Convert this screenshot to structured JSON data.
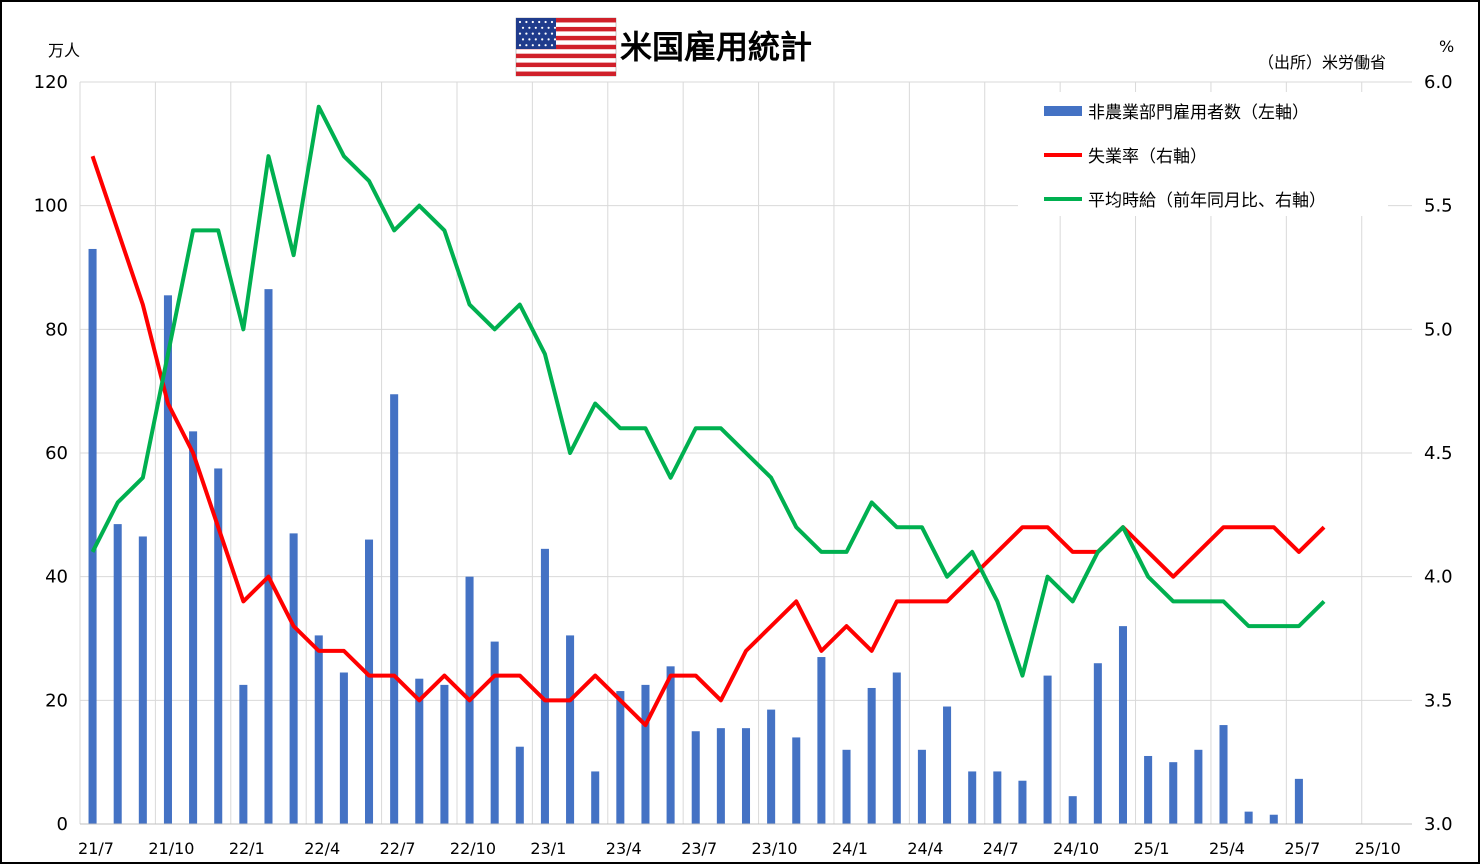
{
  "header": {
    "title": "米国雇用統計",
    "flag_icon": "us-flag-icon",
    "source": "（出所）米労働省",
    "left_unit": "万人",
    "right_unit": "%"
  },
  "chart_data": {
    "type": "bar+line",
    "title": "米国雇用統計",
    "x": [
      "21/7",
      "21/8",
      "21/9",
      "21/10",
      "21/11",
      "21/12",
      "22/1",
      "22/2",
      "22/3",
      "22/4",
      "22/5",
      "22/6",
      "22/7",
      "22/8",
      "22/9",
      "22/10",
      "22/11",
      "22/12",
      "23/1",
      "23/2",
      "23/3",
      "23/4",
      "23/5",
      "23/6",
      "23/7",
      "23/8",
      "23/9",
      "23/10",
      "23/11",
      "23/12",
      "24/1",
      "24/2",
      "24/3",
      "24/4",
      "24/5",
      "24/6",
      "24/7",
      "24/8",
      "24/9",
      "24/10",
      "24/11",
      "24/12",
      "25/1",
      "25/2",
      "25/3",
      "25/4",
      "25/5",
      "25/6",
      "25/7",
      "25/8",
      "25/9",
      "25/10",
      "25/11"
    ],
    "x_tick_labels": [
      "21/7",
      "21/10",
      "22/1",
      "22/4",
      "22/7",
      "22/10",
      "23/1",
      "23/4",
      "23/7",
      "23/10",
      "24/1",
      "24/4",
      "24/7",
      "24/10",
      "25/1",
      "25/4",
      "25/7",
      "25/10"
    ],
    "left_axis": {
      "unit": "万人",
      "ylim": [
        0,
        120
      ],
      "ticks": [
        "0",
        "20",
        "40",
        "60",
        "80",
        "100",
        "120"
      ]
    },
    "right_axis": {
      "unit": "%",
      "ylim": [
        3.0,
        6.0
      ],
      "ticks": [
        "3.0",
        "3.5",
        "4.0",
        "4.5",
        "5.0",
        "5.5",
        "6.0"
      ]
    },
    "grid": true,
    "legend_position": "top-right",
    "series": [
      {
        "name": "非農業部門雇用者数（左軸）",
        "kind": "bar",
        "axis": "left",
        "color": "#4472C4",
        "values": [
          93,
          48.5,
          46.5,
          85.5,
          63.5,
          57.5,
          22.5,
          86.5,
          47,
          30.5,
          24.5,
          46,
          69.5,
          23.5,
          22.5,
          40,
          29.5,
          12.5,
          44.5,
          30.5,
          8.5,
          21.5,
          22.5,
          25.5,
          15,
          15.5,
          15.5,
          18.5,
          14,
          27,
          12,
          22,
          24.5,
          12,
          19,
          8.5,
          8.5,
          7,
          24,
          4.5,
          26,
          32,
          11,
          10,
          12,
          16,
          2,
          1.5,
          7.3,
          null,
          null,
          null,
          null
        ]
      },
      {
        "name": "失業率（右軸）",
        "kind": "line",
        "axis": "right",
        "color": "#FF0000",
        "values": [
          5.7,
          5.4,
          5.1,
          4.7,
          4.5,
          4.2,
          3.9,
          4.0,
          3.8,
          3.7,
          3.7,
          3.6,
          3.6,
          3.5,
          3.6,
          3.5,
          3.6,
          3.6,
          3.5,
          3.5,
          3.6,
          3.5,
          3.4,
          3.6,
          3.6,
          3.5,
          3.7,
          3.8,
          3.9,
          3.7,
          3.8,
          3.7,
          3.9,
          3.9,
          3.9,
          4.0,
          4.1,
          4.2,
          4.2,
          4.1,
          4.1,
          4.2,
          4.1,
          4.0,
          4.1,
          4.2,
          4.2,
          4.2,
          4.1,
          4.2,
          null,
          null,
          null
        ]
      },
      {
        "name": "平均時給（前年同月比、右軸）",
        "kind": "line",
        "axis": "right",
        "color": "#00B050",
        "values": [
          4.1,
          4.3,
          4.4,
          4.9,
          5.4,
          5.4,
          5.0,
          5.7,
          5.3,
          5.9,
          5.7,
          5.6,
          5.4,
          5.5,
          5.4,
          5.1,
          5.0,
          5.1,
          4.9,
          4.5,
          4.7,
          4.6,
          4.6,
          4.4,
          4.6,
          4.6,
          4.5,
          4.4,
          4.2,
          4.1,
          4.1,
          4.3,
          4.2,
          4.2,
          4.0,
          4.1,
          3.9,
          3.6,
          4.0,
          3.9,
          4.1,
          4.2,
          4.0,
          3.9,
          3.9,
          3.9,
          3.8,
          3.8,
          3.8,
          3.9,
          null,
          null,
          null
        ]
      }
    ]
  }
}
